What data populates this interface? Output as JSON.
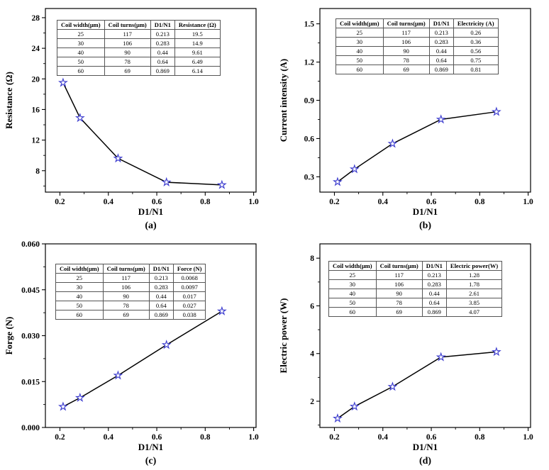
{
  "figure": {
    "background": "#ffffff",
    "line_color": "#000000",
    "marker_color": "#3a3ace",
    "marker_shape": "open-star"
  },
  "chart_data": [
    {
      "id": "a",
      "type": "line",
      "sublabel": "(a)",
      "xlabel": "D1/N1",
      "ylabel": "Resistance  (Ω)",
      "x": [
        0.213,
        0.283,
        0.44,
        0.64,
        0.869
      ],
      "y": [
        19.5,
        14.9,
        9.61,
        6.49,
        6.14
      ],
      "xlim": [
        0.14,
        1.01
      ],
      "ylim": [
        5.2,
        29.2
      ],
      "xticks": [
        0.2,
        0.4,
        0.6,
        0.8,
        1.0
      ],
      "xtick_labels": [
        "0.2",
        "0.4",
        "0.6",
        "0.8",
        "1.0"
      ],
      "yticks": [
        8,
        12,
        16,
        20,
        24,
        28
      ],
      "ytick_labels": [
        "8",
        "12",
        "16",
        "20",
        "24",
        "28"
      ],
      "legend_position": "none",
      "grid": false,
      "table": {
        "headers": [
          "Coil width(μm)",
          "Coil turns(μm)",
          "D1/N1",
          "Resistance (Ω)"
        ],
        "rows": [
          [
            "25",
            "117",
            "0.213",
            "19.5"
          ],
          [
            "30",
            "106",
            "0.283",
            "14.9"
          ],
          [
            "40",
            "90",
            "0.44",
            "9.61"
          ],
          [
            "50",
            "78",
            "0.64",
            "6.49"
          ],
          [
            "60",
            "69",
            "0.869",
            "6.14"
          ]
        ]
      }
    },
    {
      "id": "b",
      "type": "line",
      "sublabel": "(b)",
      "xlabel": "D1/N1",
      "ylabel": "Current intensity (A)",
      "x": [
        0.213,
        0.283,
        0.44,
        0.64,
        0.869
      ],
      "y": [
        0.26,
        0.36,
        0.56,
        0.75,
        0.81
      ],
      "xlim": [
        0.14,
        1.01
      ],
      "ylim": [
        0.18,
        1.62
      ],
      "xticks": [
        0.2,
        0.4,
        0.6,
        0.8,
        1.0
      ],
      "xtick_labels": [
        "0.2",
        "0.4",
        "0.6",
        "0.8",
        "1.0"
      ],
      "yticks": [
        0.3,
        0.6,
        0.9,
        1.2,
        1.5
      ],
      "ytick_labels": [
        "0.3",
        "0.6",
        "0.9",
        "1.2",
        "1.5"
      ],
      "legend_position": "none",
      "grid": false,
      "table": {
        "headers": [
          "Coil width(μm)",
          "Coil turns(μm)",
          "D1/N1",
          "Electricity (A)"
        ],
        "rows": [
          [
            "25",
            "117",
            "0.213",
            "0.26"
          ],
          [
            "30",
            "106",
            "0.283",
            "0.36"
          ],
          [
            "40",
            "90",
            "0.44",
            "0.56"
          ],
          [
            "50",
            "78",
            "0.64",
            "0.75"
          ],
          [
            "60",
            "69",
            "0.869",
            "0.81"
          ]
        ]
      }
    },
    {
      "id": "c",
      "type": "line",
      "sublabel": "(c)",
      "xlabel": "D1/N1",
      "ylabel": "Forge (N)",
      "x": [
        0.213,
        0.283,
        0.44,
        0.64,
        0.869
      ],
      "y": [
        0.0068,
        0.0097,
        0.017,
        0.027,
        0.038
      ],
      "xlim": [
        0.14,
        1.01
      ],
      "ylim": [
        0.0,
        0.06
      ],
      "xticks": [
        0.2,
        0.4,
        0.6,
        0.8,
        1.0
      ],
      "xtick_labels": [
        "0.2",
        "0.4",
        "0.6",
        "0.8",
        "1.0"
      ],
      "yticks": [
        0.0,
        0.015,
        0.03,
        0.045,
        0.06
      ],
      "ytick_labels": [
        "0.000",
        "0.015",
        "0.030",
        "0.045",
        "0.060"
      ],
      "legend_position": "none",
      "grid": false,
      "table": {
        "headers": [
          "Coil width(μm)",
          "Coil turns(μm)",
          "D1/N1",
          "Force (N)"
        ],
        "rows": [
          [
            "25",
            "117",
            "0.213",
            "0.0068"
          ],
          [
            "30",
            "106",
            "0.283",
            "0.0097"
          ],
          [
            "40",
            "90",
            "0.44",
            "0.017"
          ],
          [
            "50",
            "78",
            "0.64",
            "0.027"
          ],
          [
            "60",
            "69",
            "0.869",
            "0.038"
          ]
        ]
      }
    },
    {
      "id": "d",
      "type": "line",
      "sublabel": "(d)",
      "xlabel": "D1/N1",
      "ylabel": "Electric power (W)",
      "x": [
        0.213,
        0.283,
        0.44,
        0.64,
        0.869
      ],
      "y": [
        1.28,
        1.78,
        2.61,
        3.85,
        4.07
      ],
      "xlim": [
        0.14,
        1.01
      ],
      "ylim": [
        0.9,
        8.6
      ],
      "xticks": [
        0.2,
        0.4,
        0.6,
        0.8,
        1.0
      ],
      "xtick_labels": [
        "0.2",
        "0.4",
        "0.6",
        "0.8",
        "1.0"
      ],
      "yticks": [
        2,
        4,
        6,
        8
      ],
      "ytick_labels": [
        "2",
        "4",
        "6",
        "8"
      ],
      "legend_position": "none",
      "grid": false,
      "table": {
        "headers": [
          "Coil width(μm)",
          "Coil turns(μm)",
          "D1/N1",
          "Electric power(W)"
        ],
        "rows": [
          [
            "25",
            "117",
            "0.213",
            "1.28"
          ],
          [
            "30",
            "106",
            "0.283",
            "1.78"
          ],
          [
            "40",
            "90",
            "0.44",
            "2.61"
          ],
          [
            "50",
            "78",
            "0.64",
            "3.85"
          ],
          [
            "60",
            "69",
            "0.869",
            "4.07"
          ]
        ]
      }
    }
  ]
}
